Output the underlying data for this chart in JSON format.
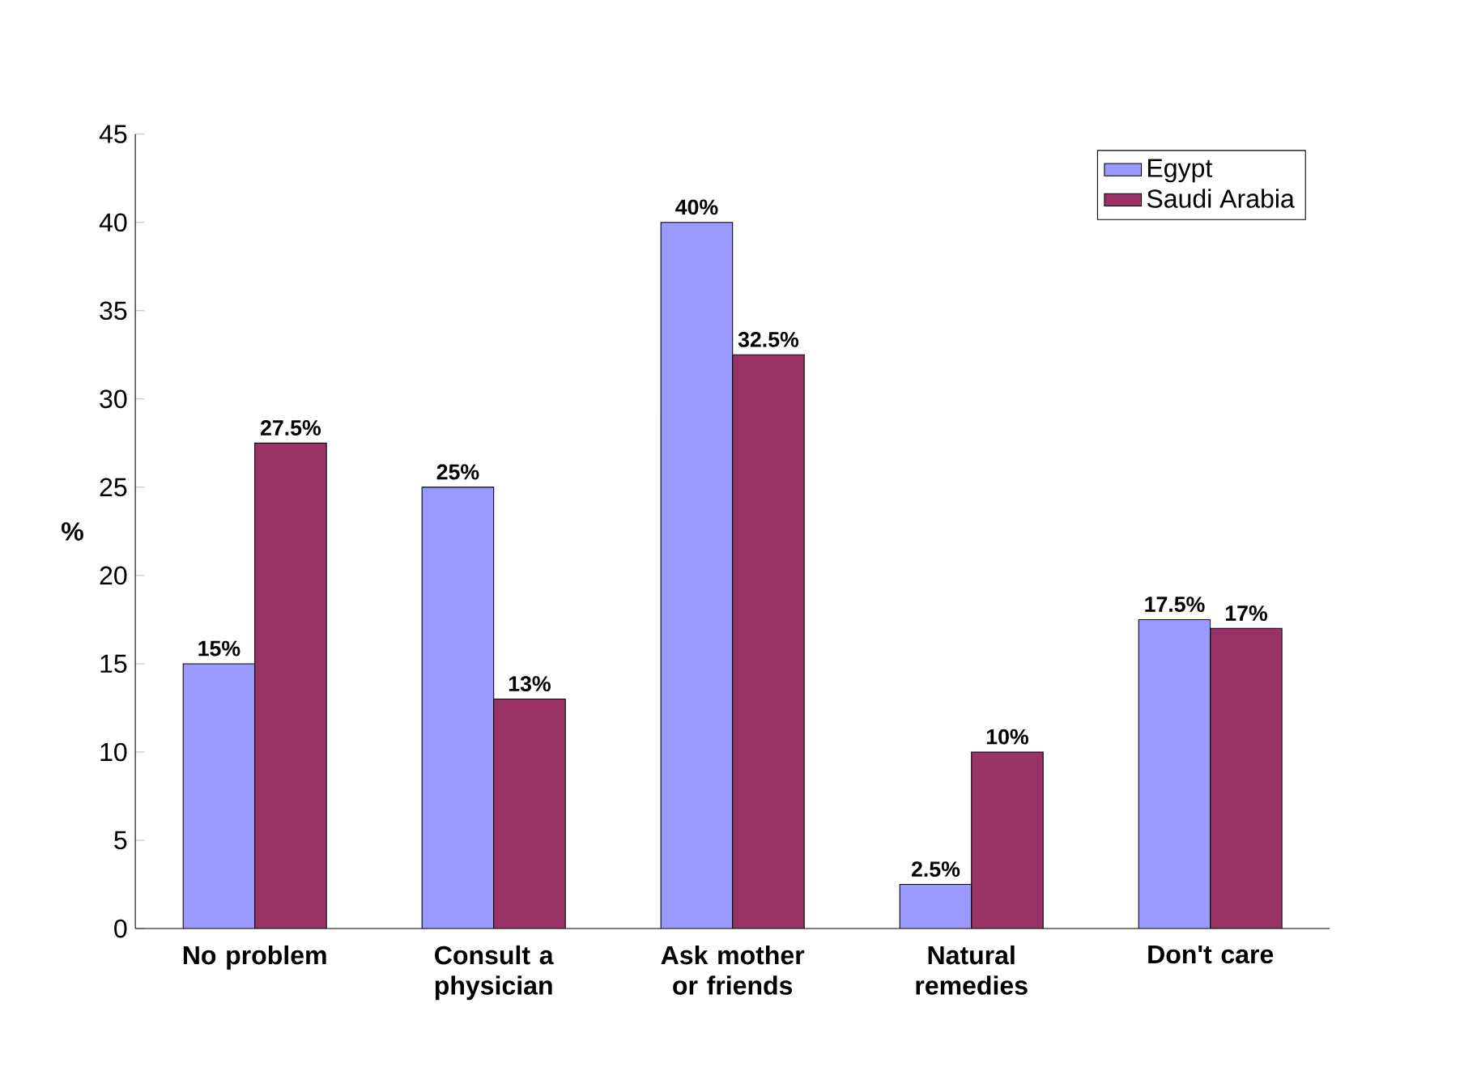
{
  "chart_data": {
    "type": "bar",
    "ylabel": "%",
    "categories": [
      "No problem",
      "Consult a physician",
      "Ask mother or friends",
      "Natural remedies",
      "Don't care"
    ],
    "series": [
      {
        "name": "Egypt",
        "color": "#9999ff",
        "values": [
          15,
          25,
          40,
          2.5,
          17.5
        ],
        "value_labels": [
          "15%",
          "25%",
          "40%",
          "2.5%",
          "17.5%"
        ]
      },
      {
        "name": "Saudi Arabia",
        "color": "#993366",
        "values": [
          27.5,
          13,
          32.5,
          10,
          17
        ],
        "value_labels": [
          "27.5%",
          "13%",
          "32.5%",
          "10%",
          "17%"
        ]
      }
    ],
    "ylim": [
      0,
      45
    ],
    "yticks": [
      0,
      5,
      10,
      15,
      20,
      25,
      30,
      35,
      40,
      45
    ],
    "legend": "top right"
  }
}
